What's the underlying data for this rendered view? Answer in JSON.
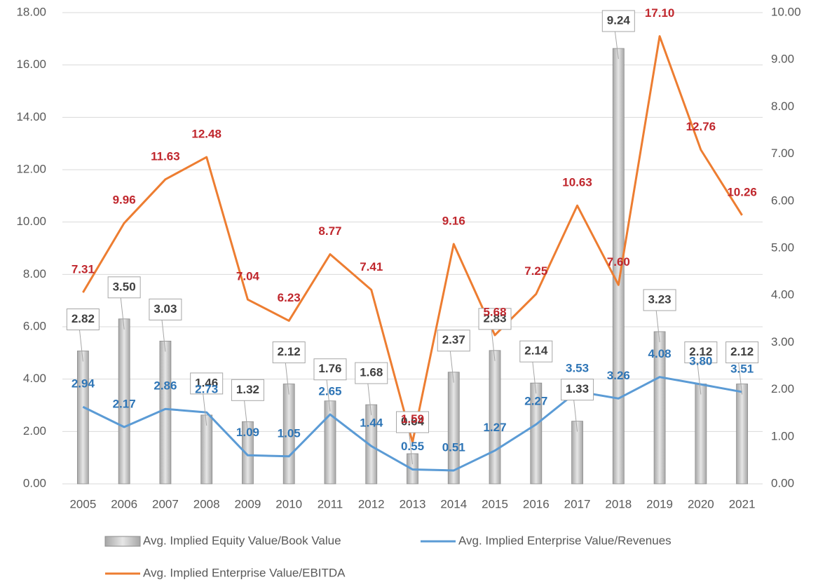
{
  "chart_data": {
    "type": "bar",
    "categories": [
      "2005",
      "2006",
      "2007",
      "2008",
      "2009",
      "2010",
      "2011",
      "2012",
      "2013",
      "2014",
      "2015",
      "2016",
      "2017",
      "2018",
      "2019",
      "2020",
      "2021"
    ],
    "series": [
      {
        "name": "Avg.  Implied Equity Value/Book Value",
        "type": "bar",
        "axis": "y2",
        "color": "#c0c0c0",
        "values": [
          2.82,
          3.5,
          3.03,
          1.46,
          1.32,
          2.12,
          1.76,
          1.68,
          0.64,
          2.37,
          2.83,
          2.14,
          1.33,
          9.24,
          3.23,
          2.12,
          2.12
        ],
        "value_labels": [
          "2.82",
          "3.50",
          "3.03",
          "1.46",
          "1.32",
          "2.12",
          "1.76",
          "1.68",
          "0.64",
          "2.37",
          "2.83",
          "2.14",
          "1.33",
          "9.24",
          "3.23",
          "2.12",
          "2.12"
        ]
      },
      {
        "name": "Avg. Implied Enterprise Value/Revenues",
        "type": "line",
        "color": "#5b9bd5",
        "values": [
          2.94,
          2.17,
          2.86,
          2.73,
          1.09,
          1.05,
          2.65,
          1.44,
          0.55,
          0.51,
          1.27,
          2.27,
          3.53,
          3.26,
          4.08,
          3.8,
          3.51
        ],
        "value_labels": [
          "2.94",
          "2.17",
          "2.86",
          "2.73",
          "1.09",
          "1.05",
          "2.65",
          "1.44",
          "0.55",
          "0.51",
          "1.27",
          "2.27",
          "3.53",
          "3.26",
          "4.08",
          "3.80",
          "3.51"
        ]
      },
      {
        "name": "Avg. Implied Enterprise Value/EBITDA",
        "type": "line",
        "color": "#ed7d31",
        "values": [
          7.31,
          9.96,
          11.63,
          12.48,
          7.04,
          6.23,
          8.77,
          7.41,
          1.59,
          9.16,
          5.68,
          7.25,
          10.63,
          7.6,
          17.1,
          12.76,
          10.26
        ],
        "value_labels": [
          "7.31",
          "9.96",
          "11.63",
          "12.48",
          "7.04",
          "6.23",
          "8.77",
          "7.41",
          "1.59",
          "9.16",
          "5.68",
          "7.25",
          "10.63",
          "7.60",
          "17.10",
          "12.76",
          "10.26"
        ]
      }
    ],
    "ylim": [
      0,
      18
    ],
    "yticks": [
      {
        "value": 0,
        "label": "0.00"
      },
      {
        "value": 2,
        "label": "2.00"
      },
      {
        "value": 4,
        "label": "4.00"
      },
      {
        "value": 6,
        "label": "6.00"
      },
      {
        "value": 8,
        "label": "8.00"
      },
      {
        "value": 10,
        "label": "10.00"
      },
      {
        "value": 12,
        "label": "12.00"
      },
      {
        "value": 14,
        "label": "14.00"
      },
      {
        "value": 16,
        "label": "16.00"
      },
      {
        "value": 18,
        "label": "18.00"
      }
    ],
    "y2lim": [
      0,
      10
    ],
    "y2ticks": [
      {
        "value": 0,
        "label": "0.00"
      },
      {
        "value": 1,
        "label": "1.00"
      },
      {
        "value": 2,
        "label": "2.00"
      },
      {
        "value": 3,
        "label": "3.00"
      },
      {
        "value": 4,
        "label": "4.00"
      },
      {
        "value": 5,
        "label": "5.00"
      },
      {
        "value": 6,
        "label": "6.00"
      },
      {
        "value": 7,
        "label": "7.00"
      },
      {
        "value": 8,
        "label": "8.00"
      },
      {
        "value": 9,
        "label": "9.00"
      },
      {
        "value": 10,
        "label": "10.00"
      }
    ],
    "grid": true,
    "legend": "bottom"
  }
}
